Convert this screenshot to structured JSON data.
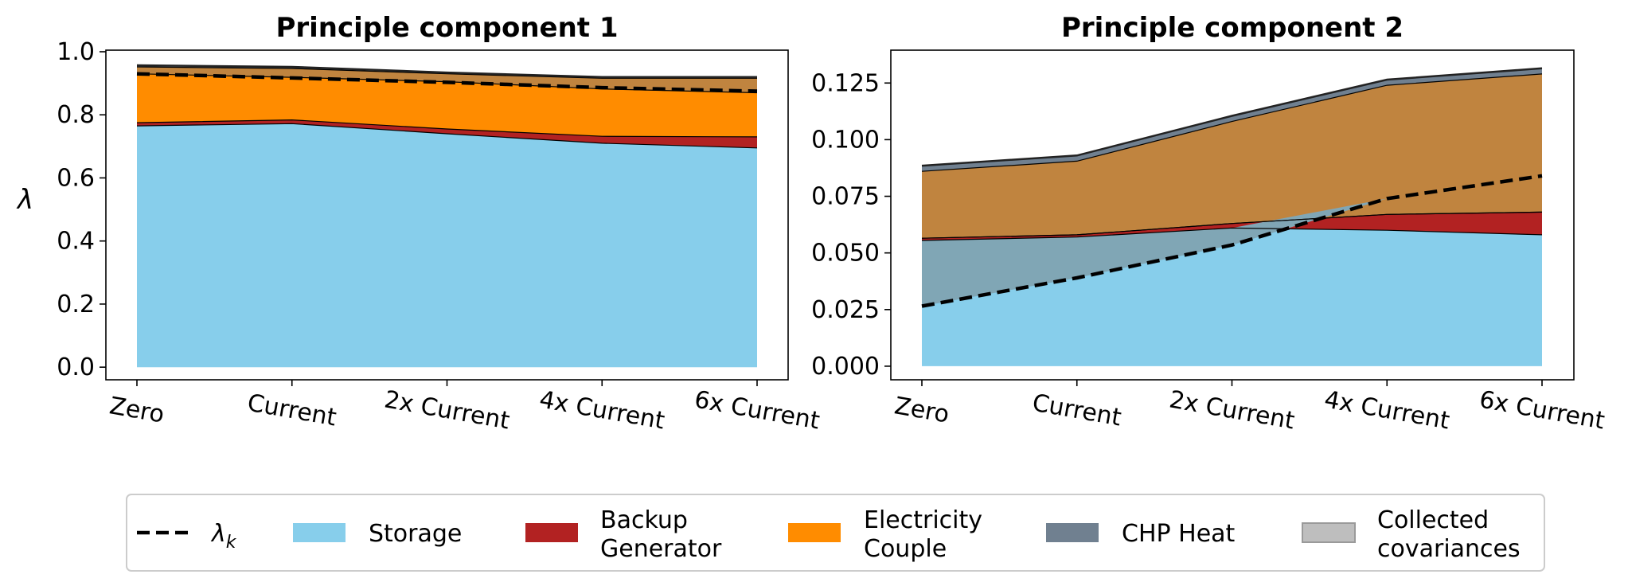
{
  "chart_data": [
    {
      "type": "area",
      "title": "Principle component 1",
      "ylabel": "λ",
      "categories": [
        "Zero",
        "Current",
        "2x Current",
        "4x Current",
        "6x Current"
      ],
      "ylim": [
        -0.04,
        1.005
      ],
      "yticks": [
        "0.0",
        "0.2",
        "0.4",
        "0.6",
        "0.8",
        "1.0"
      ],
      "yticks_values": [
        0,
        0.2,
        0.4,
        0.6,
        0.8,
        1.0
      ],
      "stacked": true,
      "series": [
        {
          "name": "Storage",
          "key": "storage",
          "values": [
            0.765,
            0.772,
            0.74,
            0.71,
            0.695
          ]
        },
        {
          "name": "Backup Generator",
          "key": "backup",
          "values": [
            0.01,
            0.012,
            0.015,
            0.022,
            0.035
          ]
        },
        {
          "name": "Electricity Couple",
          "key": "elec",
          "values": [
            0.155,
            0.135,
            0.15,
            0.15,
            0.14
          ]
        },
        {
          "name": "Collected covariances",
          "key": "collected",
          "values": [
            0.022,
            0.028,
            0.025,
            0.034,
            0.046
          ]
        },
        {
          "name": "CHP Heat",
          "key": "chp",
          "values": [
            0.005,
            0.005,
            0.004,
            0.004,
            0.004
          ]
        }
      ],
      "lambda_k": [
        0.93,
        0.917,
        0.903,
        0.886,
        0.875
      ]
    },
    {
      "type": "area",
      "title": "Principle component 2",
      "ylabel": "",
      "categories": [
        "Zero",
        "Current",
        "2x Current",
        "4x Current",
        "6x Current"
      ],
      "ylim": [
        -0.006,
        0.1395
      ],
      "yticks": [
        "0.000",
        "0.025",
        "0.050",
        "0.075",
        "0.100",
        "0.125"
      ],
      "yticks_values": [
        0,
        0.025,
        0.05,
        0.075,
        0.1,
        0.125
      ],
      "stacked": true,
      "series": [
        {
          "name": "Storage",
          "key": "storage",
          "values": [
            0.0555,
            0.057,
            0.061,
            0.06,
            0.058
          ]
        },
        {
          "name": "Backup Generator",
          "key": "backup",
          "values": [
            0.001,
            0.001,
            0.002,
            0.007,
            0.01
          ]
        },
        {
          "name": "Electricity Couple",
          "key": "elec",
          "values": [
            0.0,
            0.0,
            0.0,
            0.0,
            0.0
          ]
        },
        {
          "name": "Collected covariances",
          "key": "collected",
          "values": [
            0.0295,
            0.0325,
            0.045,
            0.057,
            0.061
          ]
        },
        {
          "name": "CHP Heat",
          "key": "chp",
          "values": [
            0.0025,
            0.0025,
            0.0025,
            0.0025,
            0.0025
          ]
        }
      ],
      "lambda_k": [
        0.0265,
        0.039,
        0.0535,
        0.074,
        0.084
      ]
    }
  ],
  "colors": {
    "storage": "#87CEEB",
    "backup": "#B22222",
    "elec": "#FF8C00",
    "chp": "#708090",
    "collected": "#BEBEBE",
    "collected_over_orange": "#C0843F",
    "collected_over_blue": "#80A6B5"
  },
  "legend": {
    "placement": "bottom-center",
    "items": [
      {
        "key": "lambda",
        "label_main": "λ",
        "label_sub": "k"
      },
      {
        "key": "storage",
        "lines": [
          "Storage"
        ]
      },
      {
        "key": "backup",
        "lines": [
          "Backup",
          "Generator"
        ]
      },
      {
        "key": "elec",
        "lines": [
          "Electricity",
          "Couple"
        ]
      },
      {
        "key": "chp",
        "lines": [
          "CHP Heat"
        ]
      },
      {
        "key": "collected",
        "lines": [
          "Collected",
          "covariances"
        ]
      }
    ]
  }
}
